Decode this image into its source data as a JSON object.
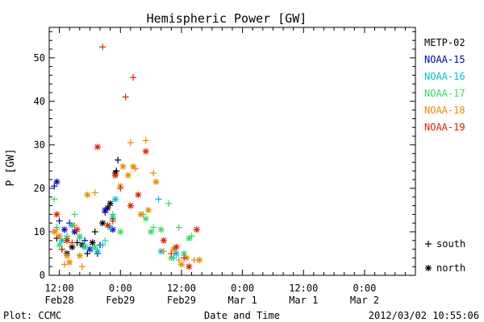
{
  "footer": {
    "plot_credit": "Plot: CCMC",
    "timestamp": "2012/03/02 10:55:06"
  },
  "chart_data": {
    "type": "scatter",
    "title": "Hemispheric Power [GW]",
    "xlabel": "Date and Time",
    "ylabel": "P [GW]",
    "ylim": [
      0,
      57
    ],
    "xlim_hours": [
      -14,
      58
    ],
    "y_ticks": [
      0,
      10,
      20,
      30,
      40,
      50
    ],
    "x_ticks": [
      {
        "hour": -12,
        "time": "12:00",
        "date": "Feb28"
      },
      {
        "hour": 0,
        "time": "0:00",
        "date": "Feb29"
      },
      {
        "hour": 12,
        "time": "12:00",
        "date": "Feb29"
      },
      {
        "hour": 24,
        "time": "0:00",
        "date": "Mar 1"
      },
      {
        "hour": 36,
        "time": "12:00",
        "date": "Mar 1"
      },
      {
        "hour": 48,
        "time": "0:00",
        "date": "Mar 2"
      }
    ],
    "grid": false,
    "legend_position": "right",
    "symbol_legend": [
      {
        "symbol": "+",
        "label": "south"
      },
      {
        "symbol": "*",
        "label": "north"
      }
    ],
    "series": [
      {
        "name": "METP-02",
        "color": "#000000",
        "points": [
          {
            "x": -12.5,
            "y": 8.5,
            "h": "south"
          },
          {
            "x": -11.5,
            "y": 6,
            "h": "south"
          },
          {
            "x": -10.5,
            "y": 5,
            "h": "north"
          },
          {
            "x": -9.5,
            "y": 6.5,
            "h": "north"
          },
          {
            "x": -8.5,
            "y": 7.5,
            "h": "south"
          },
          {
            "x": -7.5,
            "y": 7,
            "h": "north"
          },
          {
            "x": -6.5,
            "y": 5,
            "h": "south"
          },
          {
            "x": -5.5,
            "y": 7.5,
            "h": "north"
          },
          {
            "x": -5,
            "y": 10,
            "h": "south"
          },
          {
            "x": -4.5,
            "y": 5,
            "h": "south"
          },
          {
            "x": -3.5,
            "y": 12,
            "h": "north"
          },
          {
            "x": -3,
            "y": 14.5,
            "h": "south"
          },
          {
            "x": -2.5,
            "y": 15.5,
            "h": "north"
          },
          {
            "x": -2,
            "y": 16.5,
            "h": "north"
          },
          {
            "x": -1.5,
            "y": 13,
            "h": "south"
          },
          {
            "x": -1,
            "y": 23.5,
            "h": "north"
          },
          {
            "x": -0.8,
            "y": 24,
            "h": "south"
          },
          {
            "x": -0.5,
            "y": 26.5,
            "h": "south"
          }
        ]
      },
      {
        "name": "NOAA-15",
        "color": "#0000cc",
        "points": [
          {
            "x": -13,
            "y": 20.5,
            "h": "south"
          },
          {
            "x": -12.5,
            "y": 21.5,
            "h": "north"
          },
          {
            "x": -12,
            "y": 12.5,
            "h": "south"
          },
          {
            "x": -11,
            "y": 10.5,
            "h": "north"
          },
          {
            "x": -10,
            "y": 12,
            "h": "south"
          },
          {
            "x": -9,
            "y": 10,
            "h": "north"
          },
          {
            "x": -7,
            "y": 8,
            "h": "south"
          },
          {
            "x": -6,
            "y": 6,
            "h": "north"
          },
          {
            "x": -4,
            "y": 7,
            "h": "south"
          },
          {
            "x": -3,
            "y": 15,
            "h": "north"
          },
          {
            "x": -1.5,
            "y": 10.5,
            "h": "north"
          }
        ]
      },
      {
        "name": "NOAA-16",
        "color": "#00bbdd",
        "points": [
          {
            "x": -12.5,
            "y": 11,
            "h": "south"
          },
          {
            "x": -11.5,
            "y": 8,
            "h": "north"
          },
          {
            "x": -10.5,
            "y": 9,
            "h": "south"
          },
          {
            "x": -9.5,
            "y": 11.5,
            "h": "north"
          },
          {
            "x": -8,
            "y": 8.5,
            "h": "south"
          },
          {
            "x": -7,
            "y": 6.5,
            "h": "north"
          },
          {
            "x": -5.5,
            "y": 6,
            "h": "south"
          },
          {
            "x": -4.5,
            "y": 5.5,
            "h": "north"
          },
          {
            "x": -3.5,
            "y": 7,
            "h": "south"
          },
          {
            "x": -2,
            "y": 11,
            "h": "north"
          },
          {
            "x": -1.5,
            "y": 14,
            "h": "south"
          },
          {
            "x": -1,
            "y": 17.5,
            "h": "north"
          },
          {
            "x": 7.5,
            "y": 17.5,
            "h": "south"
          },
          {
            "x": 8,
            "y": 5.5,
            "h": "north"
          },
          {
            "x": 10.5,
            "y": 4,
            "h": "south"
          },
          {
            "x": 11,
            "y": 5,
            "h": "north"
          }
        ]
      },
      {
        "name": "NOAA-17",
        "color": "#33dd66",
        "points": [
          {
            "x": -13,
            "y": 17.5,
            "h": "south"
          },
          {
            "x": -12,
            "y": 7,
            "h": "north"
          },
          {
            "x": -10.5,
            "y": 8.5,
            "h": "north"
          },
          {
            "x": -9,
            "y": 14,
            "h": "south"
          },
          {
            "x": -8,
            "y": 9,
            "h": "north"
          },
          {
            "x": -7,
            "y": 7,
            "h": "south"
          },
          {
            "x": -5,
            "y": 6.5,
            "h": "north"
          },
          {
            "x": -3,
            "y": 8,
            "h": "south"
          },
          {
            "x": -1.5,
            "y": 13.5,
            "h": "north"
          },
          {
            "x": 0,
            "y": 10,
            "h": "north"
          },
          {
            "x": 4.5,
            "y": 14,
            "h": "south"
          },
          {
            "x": 5,
            "y": 13,
            "h": "north"
          },
          {
            "x": 6,
            "y": 10,
            "h": "north"
          },
          {
            "x": 6.5,
            "y": 11,
            "h": "south"
          },
          {
            "x": 8,
            "y": 10.5,
            "h": "north"
          },
          {
            "x": 9.5,
            "y": 16.5,
            "h": "south"
          },
          {
            "x": 10,
            "y": 4,
            "h": "north"
          },
          {
            "x": 11.5,
            "y": 11,
            "h": "south"
          },
          {
            "x": 12.5,
            "y": 5,
            "h": "north"
          },
          {
            "x": 13.5,
            "y": 8.5,
            "h": "north"
          },
          {
            "x": 14,
            "y": 9,
            "h": "south"
          }
        ]
      },
      {
        "name": "NOAA-18",
        "color": "#ee8800",
        "points": [
          {
            "x": -13,
            "y": 10,
            "h": "north"
          },
          {
            "x": -12.5,
            "y": 10.5,
            "h": "south"
          },
          {
            "x": -12,
            "y": 9,
            "h": "north"
          },
          {
            "x": -11,
            "y": 2.5,
            "h": "south"
          },
          {
            "x": -10.5,
            "y": 4.5,
            "h": "north"
          },
          {
            "x": -10,
            "y": 3,
            "h": "north"
          },
          {
            "x": -9,
            "y": 11.5,
            "h": "south"
          },
          {
            "x": -8,
            "y": 4.5,
            "h": "north"
          },
          {
            "x": -7.5,
            "y": 2,
            "h": "south"
          },
          {
            "x": -6.5,
            "y": 18.5,
            "h": "north"
          },
          {
            "x": -5,
            "y": 19,
            "h": "south"
          },
          {
            "x": 0,
            "y": 20.5,
            "h": "north"
          },
          {
            "x": 0.5,
            "y": 25,
            "h": "north"
          },
          {
            "x": 1.5,
            "y": 23,
            "h": "north"
          },
          {
            "x": 2,
            "y": 30.5,
            "h": "south"
          },
          {
            "x": 2.5,
            "y": 25,
            "h": "north"
          },
          {
            "x": 3,
            "y": 24.5,
            "h": "south"
          },
          {
            "x": 4,
            "y": 14,
            "h": "north"
          },
          {
            "x": 5,
            "y": 31,
            "h": "south"
          },
          {
            "x": 5.5,
            "y": 15,
            "h": "north"
          },
          {
            "x": 6.5,
            "y": 23.5,
            "h": "south"
          },
          {
            "x": 7,
            "y": 21.5,
            "h": "north"
          },
          {
            "x": 8.5,
            "y": 5.5,
            "h": "south"
          },
          {
            "x": 10.5,
            "y": 6,
            "h": "north"
          },
          {
            "x": 11.5,
            "y": 3.5,
            "h": "south"
          },
          {
            "x": 12,
            "y": 2.5,
            "h": "north"
          },
          {
            "x": 13,
            "y": 4,
            "h": "north"
          },
          {
            "x": 14.5,
            "y": 3.5,
            "h": "south"
          },
          {
            "x": 15.5,
            "y": 3.5,
            "h": "north"
          }
        ]
      },
      {
        "name": "NOAA-19",
        "color": "#dd2200",
        "points": [
          {
            "x": -12.5,
            "y": 14,
            "h": "north"
          },
          {
            "x": -11.5,
            "y": 6,
            "h": "south"
          },
          {
            "x": -10.5,
            "y": 8,
            "h": "north"
          },
          {
            "x": -9.5,
            "y": 7.5,
            "h": "south"
          },
          {
            "x": -8.5,
            "y": 10.5,
            "h": "north"
          },
          {
            "x": -4.5,
            "y": 29.5,
            "h": "north"
          },
          {
            "x": -3.5,
            "y": 52.5,
            "h": "south"
          },
          {
            "x": -2.5,
            "y": 11.5,
            "h": "north"
          },
          {
            "x": -1.5,
            "y": 12.5,
            "h": "south"
          },
          {
            "x": -1,
            "y": 23,
            "h": "north"
          },
          {
            "x": 0,
            "y": 20,
            "h": "south"
          },
          {
            "x": 1,
            "y": 41,
            "h": "south"
          },
          {
            "x": 2,
            "y": 16,
            "h": "north"
          },
          {
            "x": 2.5,
            "y": 45.5,
            "h": "south"
          },
          {
            "x": 3.5,
            "y": 18.5,
            "h": "north"
          },
          {
            "x": 5,
            "y": 28.5,
            "h": "north"
          },
          {
            "x": 8.5,
            "y": 8,
            "h": "north"
          },
          {
            "x": 10,
            "y": 5,
            "h": "south"
          },
          {
            "x": 11,
            "y": 6.5,
            "h": "north"
          },
          {
            "x": 12.5,
            "y": 4,
            "h": "south"
          },
          {
            "x": 13.5,
            "y": 2,
            "h": "north"
          },
          {
            "x": 15,
            "y": 10.5,
            "h": "north"
          }
        ]
      }
    ]
  }
}
